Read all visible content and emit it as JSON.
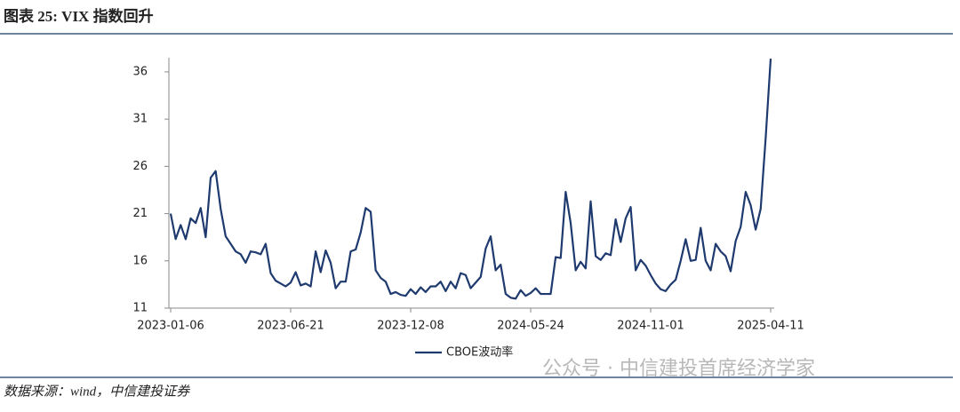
{
  "chart_data": {
    "type": "line",
    "title": "图表 25: VIX 指数回升",
    "source": "数据来源：wind，中信建投证券",
    "watermark": "公众号 · 中信建投首席经济学家",
    "categories": [
      "2023-01-06",
      null,
      null,
      null,
      null,
      null,
      null,
      null,
      null,
      null,
      null,
      null,
      null,
      null,
      null,
      null,
      null,
      null,
      null,
      null,
      null,
      null,
      null,
      null,
      "2023-06-21",
      null,
      null,
      null,
      null,
      null,
      null,
      null,
      null,
      null,
      null,
      null,
      null,
      null,
      null,
      null,
      null,
      null,
      null,
      null,
      null,
      null,
      null,
      null,
      "2023-12-08",
      null,
      null,
      null,
      null,
      null,
      null,
      null,
      null,
      null,
      null,
      null,
      null,
      null,
      null,
      null,
      null,
      null,
      null,
      null,
      null,
      null,
      null,
      null,
      "2024-05-24",
      null,
      null,
      null,
      null,
      null,
      null,
      null,
      null,
      null,
      null,
      null,
      null,
      null,
      null,
      null,
      null,
      null,
      null,
      null,
      null,
      null,
      null,
      null,
      "2024-11-01",
      null,
      null,
      null,
      null,
      null,
      null,
      null,
      null,
      null,
      null,
      null,
      null,
      null,
      null,
      null,
      null,
      null,
      null,
      null,
      null,
      null,
      null,
      null,
      "2025-04-11"
    ],
    "series": [
      {
        "name": "CBOE波动率",
        "color": "#1f3a6e",
        "values": [
          21,
          18.3,
          19.8,
          18.3,
          20.5,
          20,
          21.6,
          18.5,
          24.8,
          25.5,
          21.5,
          18.6,
          17.8,
          17,
          16.7,
          15.8,
          17,
          16.9,
          16.7,
          17.8,
          14.7,
          13.9,
          13.6,
          13.3,
          13.7,
          14.8,
          13.4,
          13.6,
          13.3,
          17,
          14.8,
          17.1,
          15.8,
          13.1,
          13.8,
          13.8,
          17,
          17.2,
          19,
          21.6,
          21.2,
          15,
          14.2,
          13.8,
          12.5,
          12.7,
          12.4,
          12.3,
          13,
          12.5,
          13.2,
          12.7,
          13.3,
          13.3,
          13.8,
          12.8,
          13.8,
          13.1,
          14.7,
          14.5,
          13.1,
          13.7,
          14.3,
          17.3,
          18.6,
          15,
          15.6,
          12.5,
          12.1,
          12,
          12.9,
          12.3,
          12.6,
          13.1,
          12.5,
          12.5,
          12.5,
          16.4,
          16.3,
          23.3,
          20,
          15,
          15.9,
          15.2,
          22.3,
          16.5,
          16.1,
          16.8,
          16.6,
          20.4,
          18,
          20.5,
          21.7,
          15,
          16.1,
          15.5,
          14.5,
          13.6,
          13,
          12.8,
          13.5,
          14,
          16,
          18.3,
          16,
          16.1,
          19.5,
          16,
          15,
          17.8,
          17,
          16.5,
          14.9,
          18.1,
          19.6,
          23.3,
          21.9,
          19.3,
          21.5,
          29,
          37.4
        ]
      }
    ],
    "ylim": [
      11,
      37.5
    ],
    "yticks": [
      11,
      16,
      21,
      26,
      31,
      36
    ],
    "grid": false,
    "legend": "bottom"
  }
}
